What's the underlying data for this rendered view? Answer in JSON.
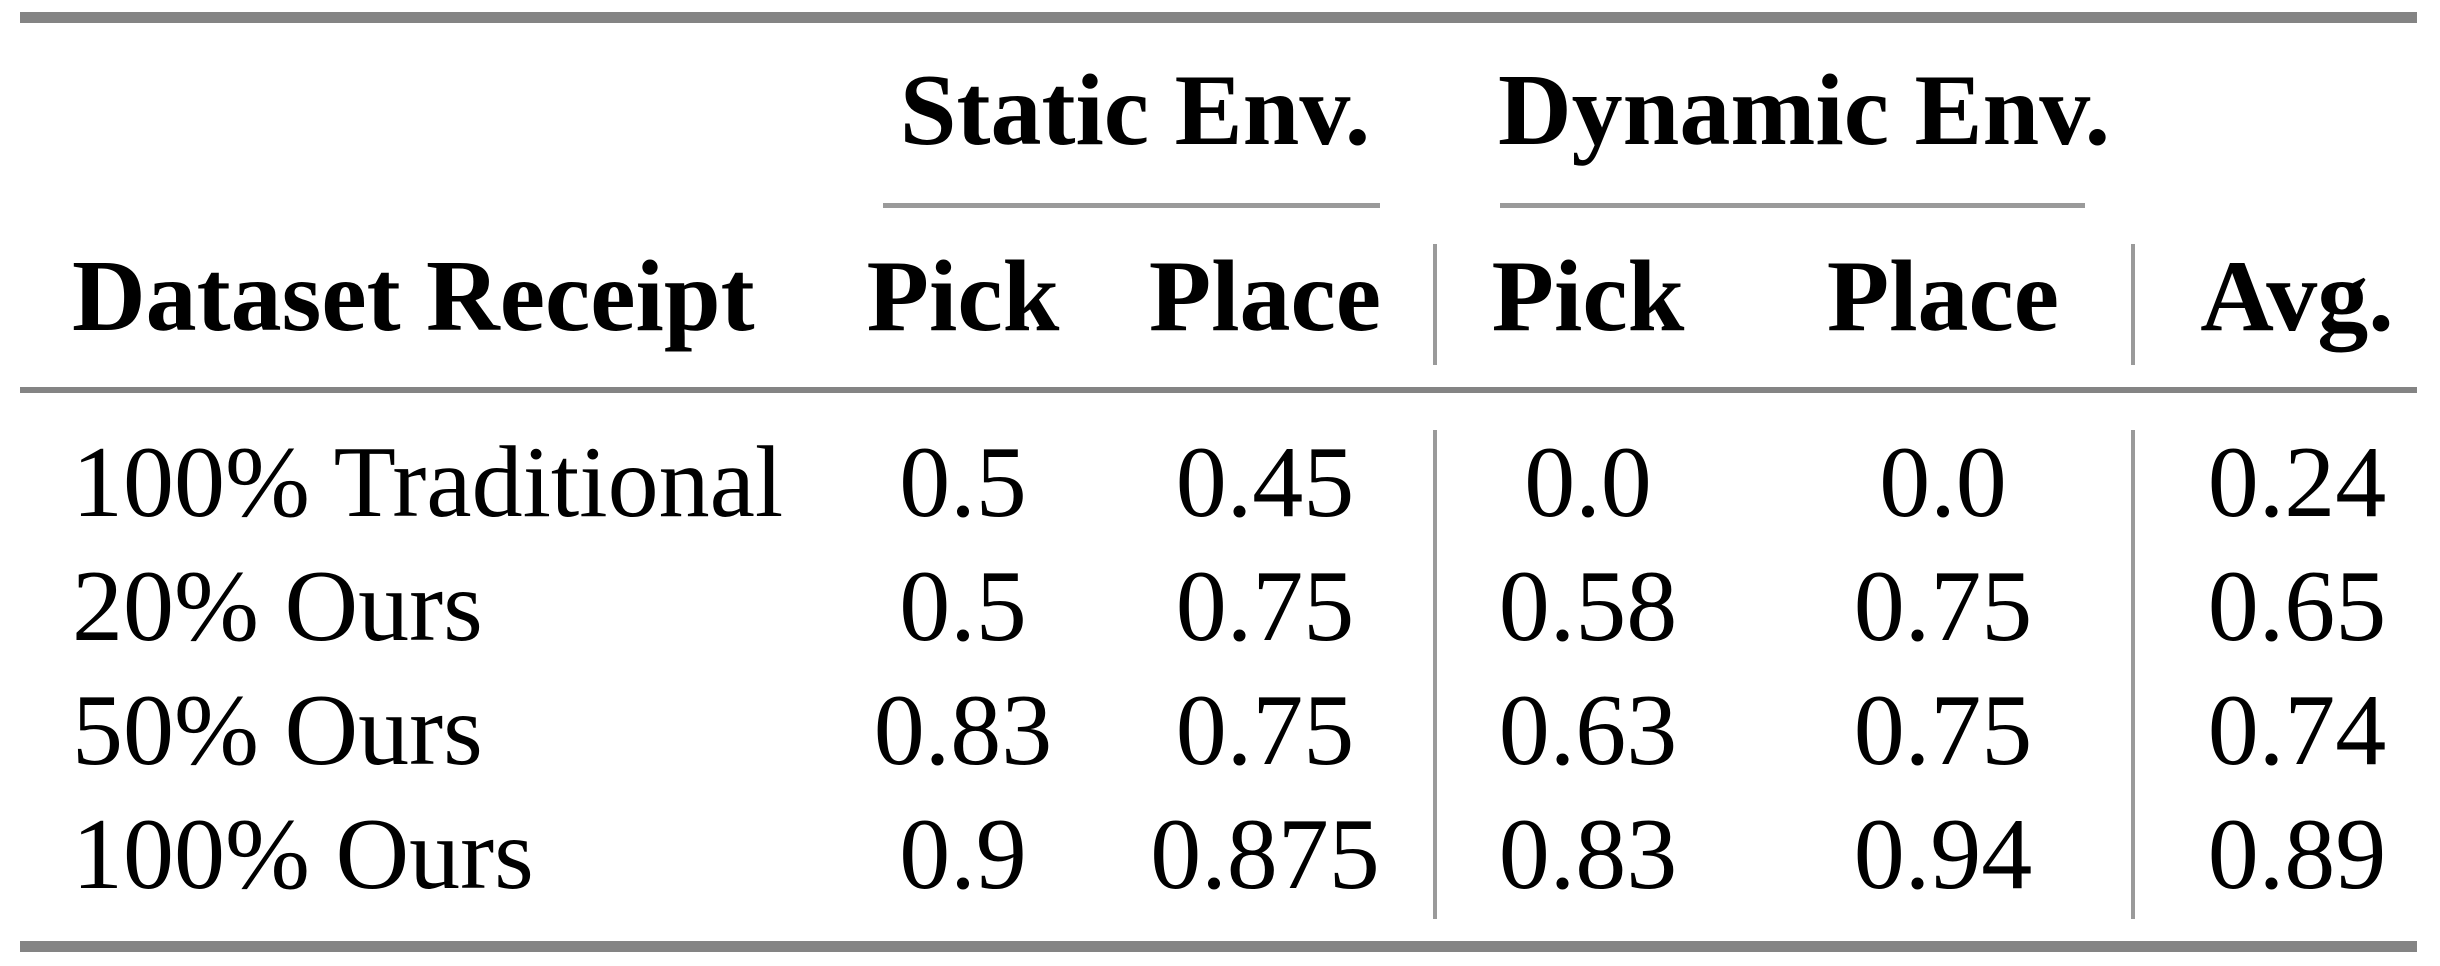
{
  "table": {
    "group_headers": {
      "static": "Static Env.",
      "dynamic": "Dynamic Env."
    },
    "column_headers": {
      "dataset": "Dataset Receipt",
      "static_pick": "Pick",
      "static_place": "Place",
      "dynamic_pick": "Pick",
      "dynamic_place": "Place",
      "avg": "Avg."
    },
    "rows": [
      {
        "label": "100% Traditional",
        "static_pick": "0.5",
        "static_place": "0.45",
        "dynamic_pick": "0.0",
        "dynamic_place": "0.0",
        "avg": "0.24"
      },
      {
        "label": "20% Ours",
        "static_pick": "0.5",
        "static_place": "0.75",
        "dynamic_pick": "0.58",
        "dynamic_place": "0.75",
        "avg": "0.65"
      },
      {
        "label": "50% Ours",
        "static_pick": "0.83",
        "static_place": "0.75",
        "dynamic_pick": "0.63",
        "dynamic_place": "0.75",
        "avg": "0.74"
      },
      {
        "label": "100% Ours",
        "static_pick": "0.9",
        "static_place": "0.875",
        "dynamic_pick": "0.83",
        "dynamic_place": "0.94",
        "avg": "0.89"
      }
    ]
  },
  "colors": {
    "heavy_rule": "#848484",
    "light_rule": "#9a9a9a",
    "text": "#000000",
    "background": "#ffffff"
  }
}
